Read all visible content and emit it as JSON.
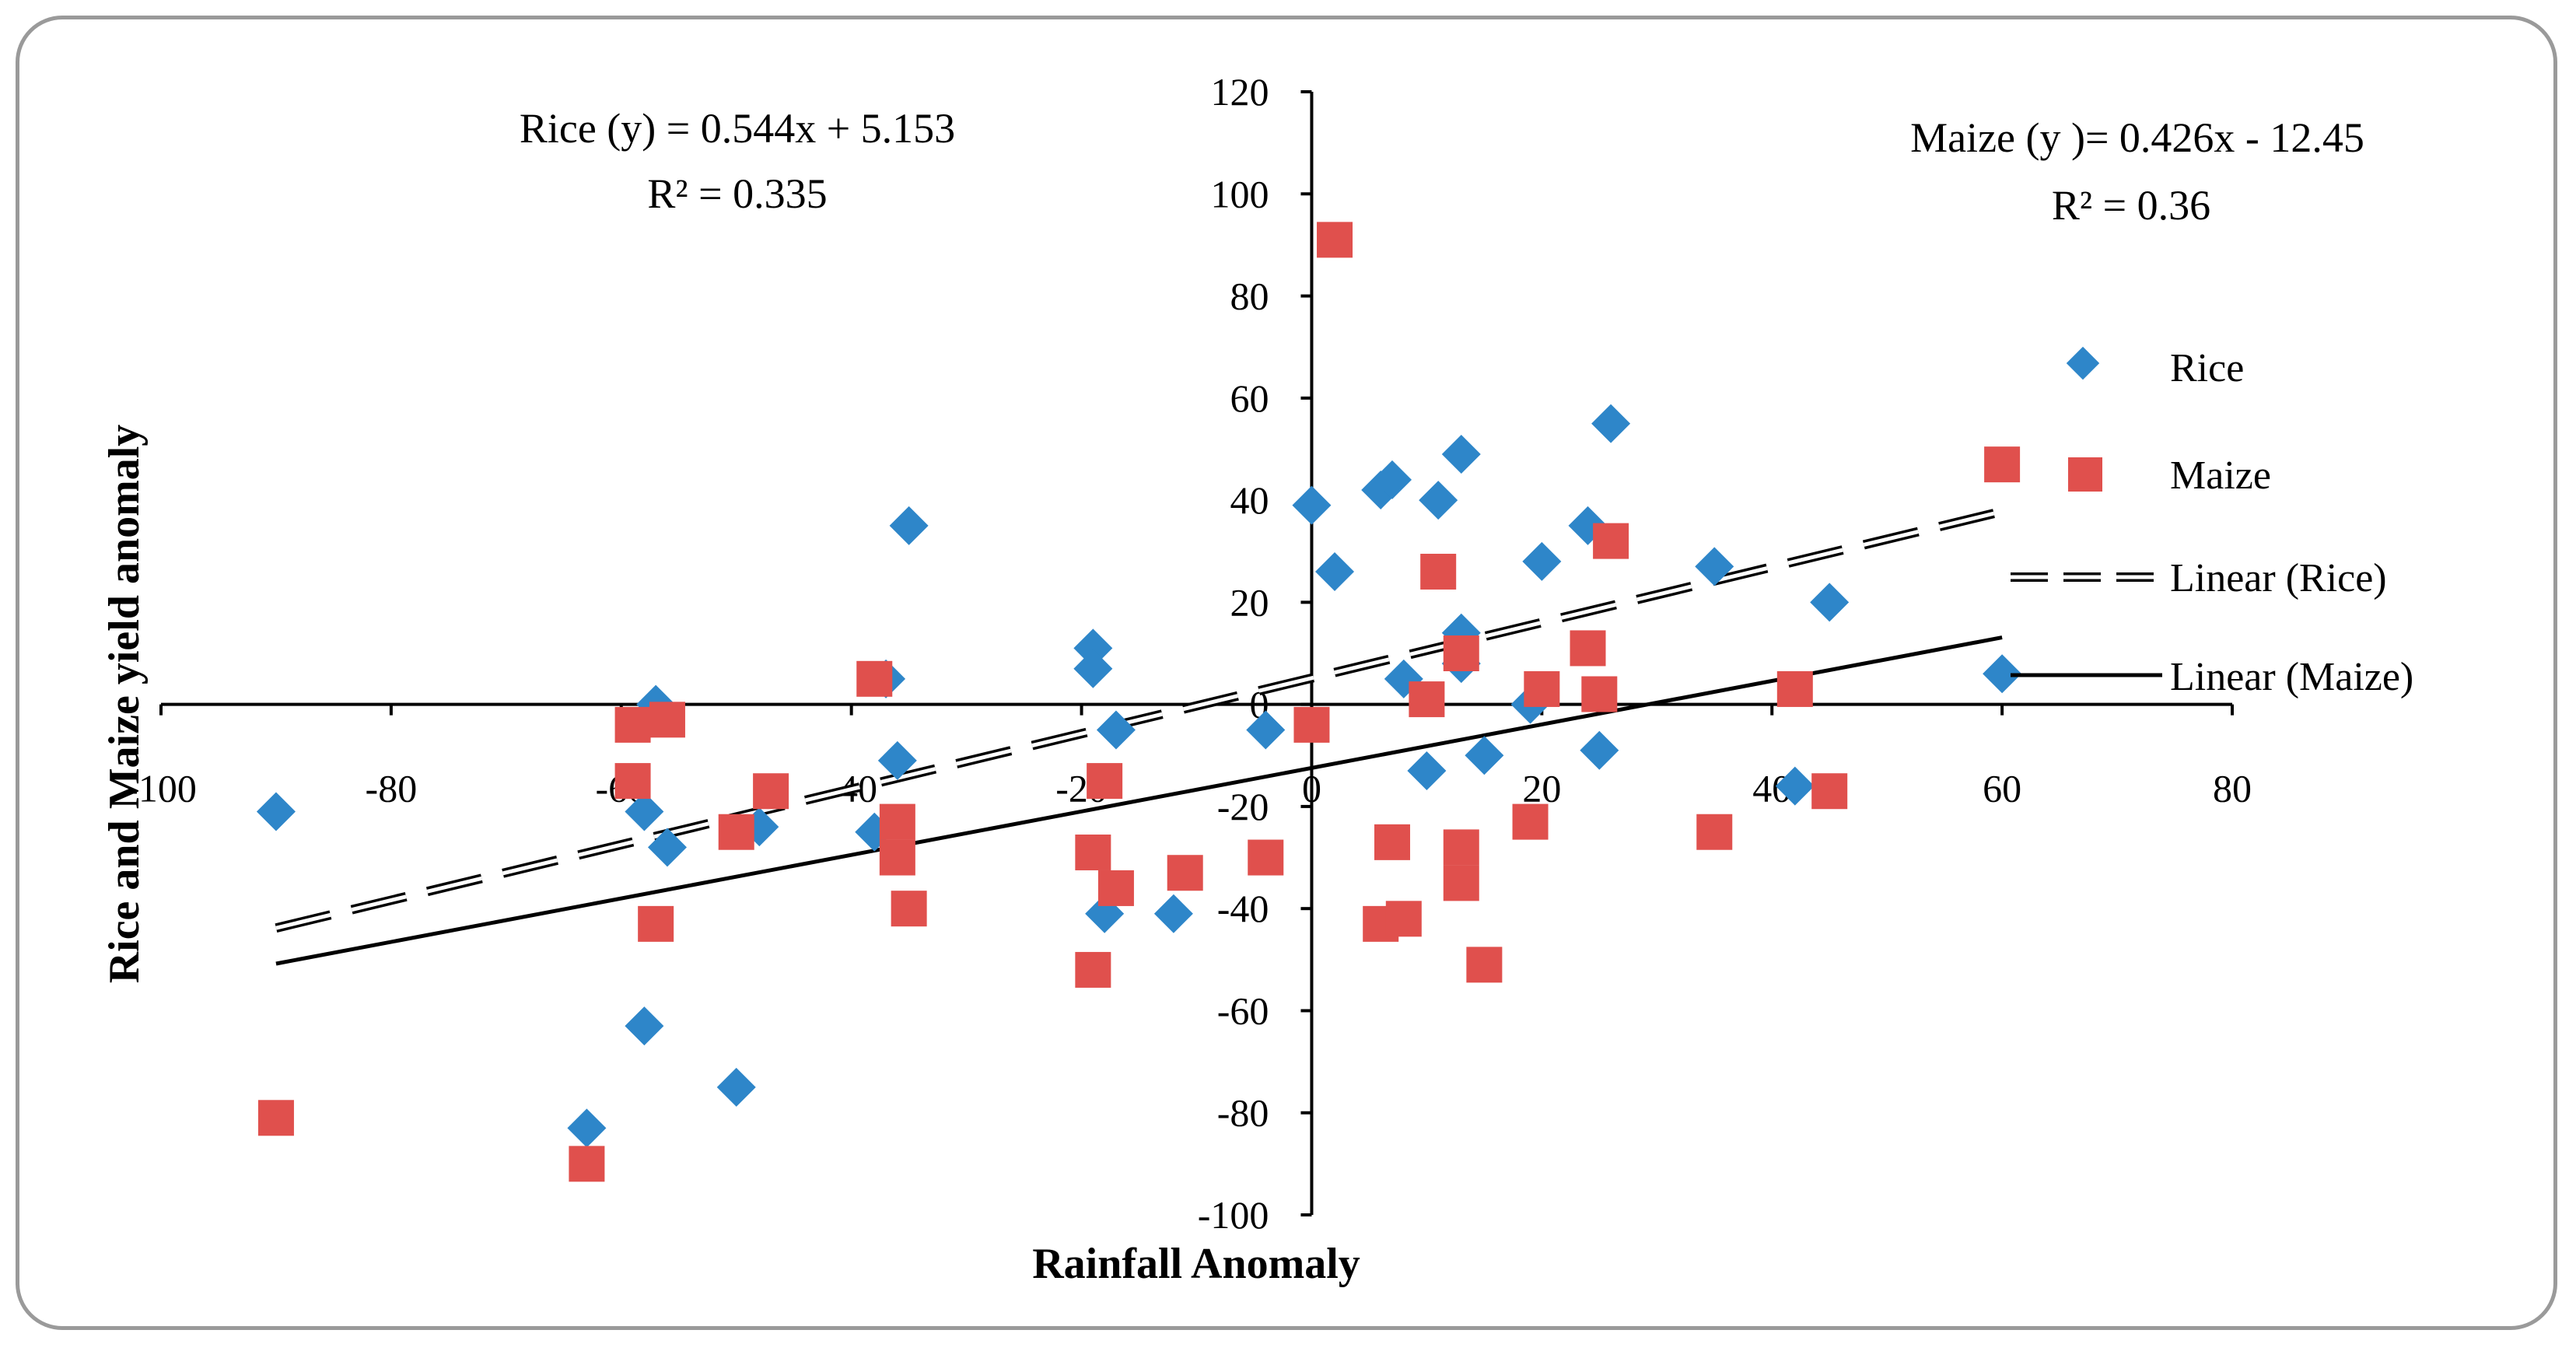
{
  "chart_data": {
    "type": "scatter",
    "xlabel": "Rainfall Anomaly",
    "ylabel": "Rice and Maize yield anomaly",
    "xlim": [
      -100,
      80
    ],
    "ylim": [
      -100,
      120
    ],
    "x_ticks": [
      -100,
      -80,
      -60,
      -40,
      -20,
      0,
      20,
      40,
      60,
      80
    ],
    "y_ticks": [
      -100,
      -80,
      -60,
      -40,
      -20,
      0,
      20,
      40,
      60,
      80,
      100,
      120
    ],
    "x_tick_labels": [
      "-100",
      "-80",
      "-60",
      "-40",
      "-20",
      "0",
      "20",
      "40",
      "60",
      "80"
    ],
    "y_tick_labels": [
      "-100",
      "-80",
      "-60",
      "-40",
      "-20",
      "0",
      "20",
      "40",
      "60",
      "80",
      "100",
      "120"
    ],
    "grid": false,
    "legend_position": "right",
    "series": [
      {
        "name": "Rice",
        "marker": "diamond",
        "color": "#2E86C9",
        "points": [
          [
            -90,
            -21
          ],
          [
            -63,
            -83
          ],
          [
            -58,
            -63
          ],
          [
            -57,
            0
          ],
          [
            -58,
            -21
          ],
          [
            -56,
            -28
          ],
          [
            -50,
            -75
          ],
          [
            -48,
            -24
          ],
          [
            -38,
            -25
          ],
          [
            -36,
            -11
          ],
          [
            -37,
            5
          ],
          [
            -35,
            35
          ],
          [
            -19,
            11
          ],
          [
            -19,
            7
          ],
          [
            -17,
            -5
          ],
          [
            -18,
            -41
          ],
          [
            -12,
            -41
          ],
          [
            -4,
            -5
          ],
          [
            0,
            39
          ],
          [
            2,
            26
          ],
          [
            6,
            42
          ],
          [
            7,
            44
          ],
          [
            8,
            5
          ],
          [
            10,
            -13
          ],
          [
            11,
            40
          ],
          [
            13,
            49
          ],
          [
            13,
            14
          ],
          [
            13,
            8
          ],
          [
            15,
            -10
          ],
          [
            19,
            0
          ],
          [
            20,
            28
          ],
          [
            24,
            35
          ],
          [
            25,
            -9
          ],
          [
            26,
            55
          ],
          [
            35,
            27
          ],
          [
            42,
            -16
          ],
          [
            45,
            20
          ],
          [
            60,
            6
          ]
        ]
      },
      {
        "name": "Maize",
        "marker": "square",
        "color": "#E0504D",
        "points": [
          [
            -90,
            -81
          ],
          [
            -63,
            -90
          ],
          [
            -59,
            -4
          ],
          [
            -59,
            -15
          ],
          [
            -57,
            -43
          ],
          [
            -56,
            -3
          ],
          [
            -50,
            -25
          ],
          [
            -47,
            -17
          ],
          [
            -38,
            5
          ],
          [
            -36,
            -23
          ],
          [
            -36,
            -30
          ],
          [
            -35,
            -40
          ],
          [
            -19,
            -29
          ],
          [
            -19,
            -52
          ],
          [
            -18,
            -15
          ],
          [
            -17,
            -36
          ],
          [
            -11,
            -33
          ],
          [
            -4,
            -30
          ],
          [
            0,
            -4
          ],
          [
            2,
            91
          ],
          [
            7,
            -27
          ],
          [
            6,
            -43
          ],
          [
            8,
            -42
          ],
          [
            10,
            1
          ],
          [
            11,
            26
          ],
          [
            13,
            -28
          ],
          [
            13,
            -35
          ],
          [
            13,
            10
          ],
          [
            15,
            -51
          ],
          [
            19,
            -23
          ],
          [
            20,
            3
          ],
          [
            24,
            11
          ],
          [
            25,
            2
          ],
          [
            26,
            32
          ],
          [
            35,
            -25
          ],
          [
            42,
            3
          ],
          [
            45,
            -17
          ],
          [
            60,
            47
          ]
        ]
      }
    ],
    "trendlines": [
      {
        "name": "Linear (Rice)",
        "series": "Rice",
        "slope": 0.544,
        "intercept": 5.153,
        "x_range": [
          -90,
          60
        ],
        "style": "dashed-double"
      },
      {
        "name": "Linear (Maize)",
        "series": "Maize",
        "slope": 0.426,
        "intercept": -12.45,
        "x_range": [
          -90,
          60
        ],
        "style": "solid"
      }
    ],
    "annotations": {
      "rice_equation": "Rice (y)  = 0.544x + 5.153",
      "rice_r2": "R² = 0.335",
      "maize_equation": "Maize (y )= 0.426x - 12.45",
      "maize_r2": "R² = 0.36"
    },
    "legend": [
      "Rice",
      "Maize",
      "Linear (Rice)",
      "Linear (Maize)"
    ]
  }
}
